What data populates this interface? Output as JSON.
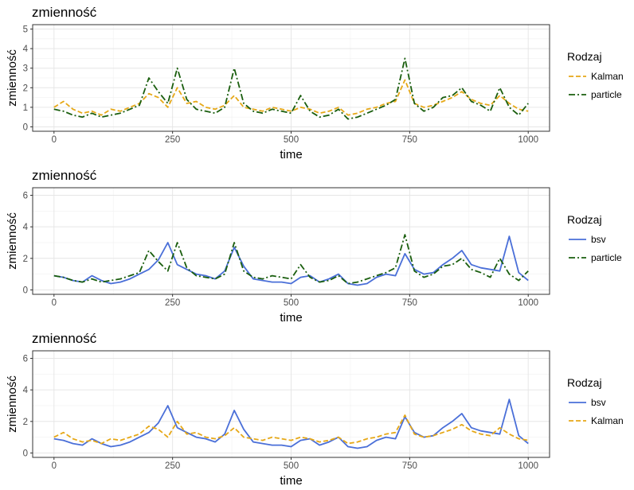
{
  "chart_data": [
    {
      "type": "line",
      "title": "zmienność",
      "xlabel": "time",
      "ylabel": "zmienność",
      "xlim": [
        0,
        1000
      ],
      "ylim": [
        0,
        5
      ],
      "xticks": [
        0,
        250,
        500,
        750,
        1000
      ],
      "yticks": [
        0,
        1,
        2,
        3,
        4,
        5
      ],
      "grid": true,
      "legend": {
        "title": "Rodzaj",
        "position": "right"
      },
      "x": [
        0,
        20,
        40,
        60,
        80,
        100,
        120,
        140,
        160,
        180,
        200,
        220,
        240,
        260,
        280,
        300,
        320,
        340,
        360,
        380,
        400,
        420,
        440,
        460,
        480,
        500,
        520,
        540,
        560,
        580,
        600,
        620,
        640,
        660,
        680,
        700,
        720,
        740,
        760,
        780,
        800,
        820,
        840,
        860,
        880,
        900,
        920,
        940,
        960,
        980,
        1000
      ],
      "series": [
        {
          "name": "Kalman",
          "color": "#e6a817",
          "dash": "6,3",
          "values": [
            1.0,
            1.3,
            0.9,
            0.7,
            0.8,
            0.6,
            0.9,
            0.8,
            1.0,
            1.2,
            1.7,
            1.5,
            1.0,
            2.0,
            1.2,
            1.3,
            1.0,
            0.9,
            1.1,
            1.6,
            1.0,
            0.9,
            0.8,
            1.0,
            0.9,
            0.8,
            1.0,
            0.9,
            0.7,
            0.8,
            1.0,
            0.6,
            0.7,
            0.9,
            1.0,
            1.2,
            1.3,
            2.4,
            1.2,
            1.0,
            1.1,
            1.3,
            1.5,
            1.8,
            1.4,
            1.2,
            1.1,
            1.6,
            1.2,
            0.9,
            0.8
          ]
        },
        {
          "name": "particle",
          "color": "#1a5e0e",
          "dash": "8,3,2,3",
          "values": [
            0.9,
            0.8,
            0.6,
            0.5,
            0.7,
            0.5,
            0.6,
            0.7,
            0.9,
            1.1,
            2.5,
            1.8,
            1.2,
            3.0,
            1.4,
            0.9,
            0.8,
            0.7,
            1.0,
            3.0,
            1.2,
            0.8,
            0.7,
            0.9,
            0.8,
            0.7,
            1.6,
            0.8,
            0.5,
            0.6,
            0.9,
            0.4,
            0.5,
            0.7,
            0.9,
            1.1,
            1.4,
            3.5,
            1.2,
            0.8,
            1.0,
            1.5,
            1.6,
            2.0,
            1.3,
            1.1,
            0.8,
            2.0,
            1.0,
            0.6,
            1.2
          ]
        }
      ]
    },
    {
      "type": "line",
      "title": "zmienność",
      "xlabel": "time",
      "ylabel": "zmienność",
      "xlim": [
        0,
        1000
      ],
      "ylim": [
        0,
        6.2
      ],
      "xticks": [
        0,
        250,
        500,
        750,
        1000
      ],
      "yticks": [
        0,
        2,
        4,
        6
      ],
      "grid": true,
      "legend": {
        "title": "Rodzaj",
        "position": "right"
      },
      "x": [
        0,
        20,
        40,
        60,
        80,
        100,
        120,
        140,
        160,
        180,
        200,
        220,
        240,
        260,
        280,
        300,
        320,
        340,
        360,
        380,
        400,
        420,
        440,
        460,
        480,
        500,
        520,
        540,
        560,
        580,
        600,
        620,
        640,
        660,
        680,
        700,
        720,
        740,
        760,
        780,
        800,
        820,
        840,
        860,
        880,
        900,
        920,
        940,
        960,
        980,
        1000
      ],
      "series": [
        {
          "name": "bsv",
          "color": "#4a6fd8",
          "dash": "",
          "values": [
            0.9,
            0.8,
            0.6,
            0.5,
            0.9,
            0.6,
            0.4,
            0.5,
            0.7,
            1.0,
            1.3,
            1.9,
            3.0,
            1.6,
            1.3,
            1.0,
            0.9,
            0.7,
            1.2,
            2.7,
            1.5,
            0.7,
            0.6,
            0.5,
            0.5,
            0.4,
            0.8,
            0.9,
            0.5,
            0.7,
            1.0,
            0.4,
            0.3,
            0.4,
            0.8,
            1.0,
            0.9,
            2.3,
            1.3,
            1.0,
            1.1,
            1.6,
            2.0,
            2.5,
            1.6,
            1.4,
            1.3,
            1.2,
            3.4,
            1.1,
            0.6
          ]
        },
        {
          "name": "particle",
          "color": "#1a5e0e",
          "dash": "8,3,2,3",
          "values": [
            0.9,
            0.8,
            0.6,
            0.5,
            0.7,
            0.5,
            0.6,
            0.7,
            0.9,
            1.1,
            2.5,
            1.8,
            1.2,
            3.0,
            1.4,
            0.9,
            0.8,
            0.7,
            1.0,
            3.0,
            1.2,
            0.8,
            0.7,
            0.9,
            0.8,
            0.7,
            1.6,
            0.8,
            0.5,
            0.6,
            0.9,
            0.4,
            0.5,
            0.7,
            0.9,
            1.1,
            1.4,
            3.5,
            1.2,
            0.8,
            1.0,
            1.5,
            1.6,
            2.0,
            1.3,
            1.1,
            0.8,
            2.0,
            1.0,
            0.6,
            1.2
          ]
        }
      ]
    },
    {
      "type": "line",
      "title": "zmienność",
      "xlabel": "time",
      "ylabel": "zmienność",
      "xlim": [
        0,
        1000
      ],
      "ylim": [
        0,
        6.2
      ],
      "xticks": [
        0,
        250,
        500,
        750,
        1000
      ],
      "yticks": [
        0,
        2,
        4,
        6
      ],
      "grid": true,
      "legend": {
        "title": "Rodzaj",
        "position": "right"
      },
      "x": [
        0,
        20,
        40,
        60,
        80,
        100,
        120,
        140,
        160,
        180,
        200,
        220,
        240,
        260,
        280,
        300,
        320,
        340,
        360,
        380,
        400,
        420,
        440,
        460,
        480,
        500,
        520,
        540,
        560,
        580,
        600,
        620,
        640,
        660,
        680,
        700,
        720,
        740,
        760,
        780,
        800,
        820,
        840,
        860,
        880,
        900,
        920,
        940,
        960,
        980,
        1000
      ],
      "series": [
        {
          "name": "bsv",
          "color": "#4a6fd8",
          "dash": "",
          "values": [
            0.9,
            0.8,
            0.6,
            0.5,
            0.9,
            0.6,
            0.4,
            0.5,
            0.7,
            1.0,
            1.3,
            1.9,
            3.0,
            1.6,
            1.3,
            1.0,
            0.9,
            0.7,
            1.2,
            2.7,
            1.5,
            0.7,
            0.6,
            0.5,
            0.5,
            0.4,
            0.8,
            0.9,
            0.5,
            0.7,
            1.0,
            0.4,
            0.3,
            0.4,
            0.8,
            1.0,
            0.9,
            2.3,
            1.3,
            1.0,
            1.1,
            1.6,
            2.0,
            2.5,
            1.6,
            1.4,
            1.3,
            1.2,
            3.4,
            1.1,
            0.6
          ]
        },
        {
          "name": "Kalman",
          "color": "#e6a817",
          "dash": "6,3",
          "values": [
            1.0,
            1.3,
            0.9,
            0.7,
            0.8,
            0.6,
            0.9,
            0.8,
            1.0,
            1.2,
            1.7,
            1.5,
            1.0,
            2.0,
            1.2,
            1.3,
            1.0,
            0.9,
            1.1,
            1.6,
            1.0,
            0.9,
            0.8,
            1.0,
            0.9,
            0.8,
            1.0,
            0.9,
            0.7,
            0.8,
            1.0,
            0.6,
            0.7,
            0.9,
            1.0,
            1.2,
            1.3,
            2.4,
            1.2,
            1.0,
            1.1,
            1.3,
            1.5,
            1.8,
            1.4,
            1.2,
            1.1,
            1.6,
            1.2,
            0.9,
            0.8
          ]
        }
      ]
    }
  ]
}
